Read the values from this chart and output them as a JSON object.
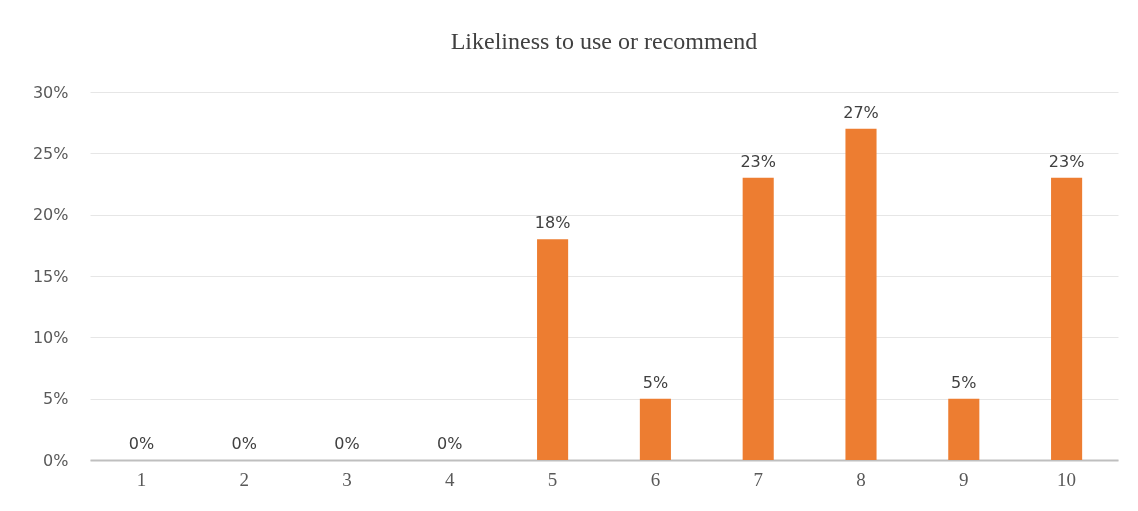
{
  "chart_data": {
    "type": "bar",
    "title": "Likeliness to use or recommend",
    "categories": [
      "1",
      "2",
      "3",
      "4",
      "5",
      "6",
      "7",
      "8",
      "9",
      "10"
    ],
    "values": [
      0,
      0,
      0,
      0,
      18,
      5,
      23,
      27,
      5,
      23
    ],
    "value_labels": [
      "0%",
      "0%",
      "0%",
      "0%",
      "18%",
      "5%",
      "23%",
      "27%",
      "5%",
      "23%"
    ],
    "color": "#ed7d31",
    "ylim": [
      0,
      30
    ],
    "yticks": [
      {
        "value": 0,
        "label": "0%"
      },
      {
        "value": 5,
        "label": "5%"
      },
      {
        "value": 10,
        "label": "10%"
      },
      {
        "value": 15,
        "label": "15%"
      },
      {
        "value": 20,
        "label": "20%"
      },
      {
        "value": 25,
        "label": "25%"
      },
      {
        "value": 30,
        "label": "30%"
      }
    ],
    "grid": true
  }
}
